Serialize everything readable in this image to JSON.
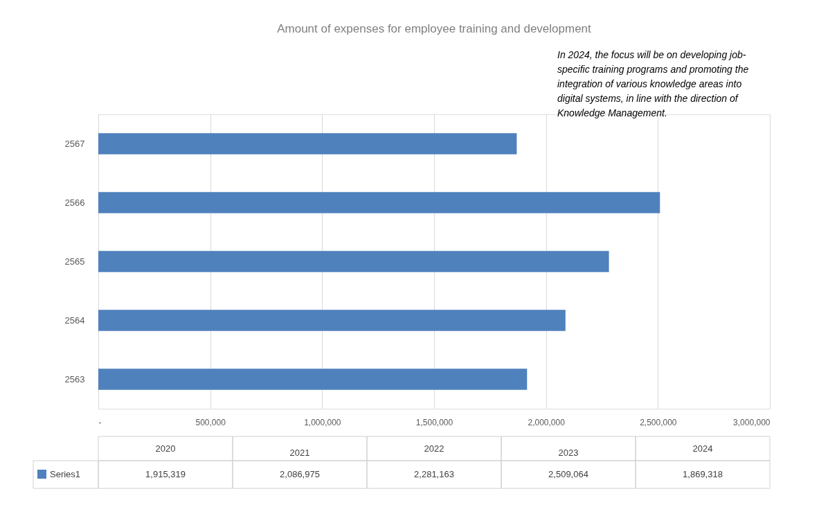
{
  "chart_data": {
    "type": "bar",
    "orientation": "horizontal",
    "title": "Amount of expenses for employee training and development",
    "categories": [
      "2567",
      "2566",
      "2565",
      "2564",
      "2563"
    ],
    "series": [
      {
        "name": "Series1",
        "color": "#4f81bd",
        "values": [
          1869318,
          2509064,
          2281163,
          2086975,
          1915319
        ]
      }
    ],
    "value_labels": [
      "1,869,318",
      "2,509,064",
      "2,281,163",
      "2,086,975",
      "1,915,319"
    ],
    "xlim": [
      0,
      3000000
    ],
    "xticks": [
      {
        "value": 0,
        "label": "-"
      },
      {
        "value": 500000,
        "label": "500,000"
      },
      {
        "value": 1000000,
        "label": "1,000,000"
      },
      {
        "value": 1500000,
        "label": "1,500,000"
      },
      {
        "value": 2000000,
        "label": "2,000,000"
      },
      {
        "value": 2500000,
        "label": "2,500,000"
      },
      {
        "value": 3000000,
        "label": "3,000,000"
      }
    ],
    "grid": "x",
    "legend": "bottom",
    "annotations": [
      "In 2024, the focus will be on developing job-specific training programs and promoting the integration of various knowledge areas into digital systems, in line with the direction of Knowledge Management.",
      "2020",
      "2021",
      "2022",
      "2023",
      "2024"
    ]
  }
}
